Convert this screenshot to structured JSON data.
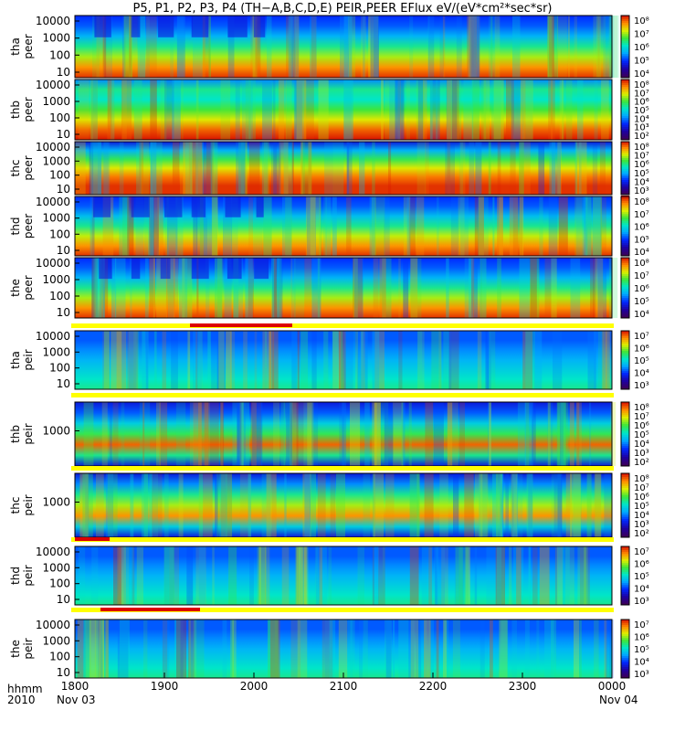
{
  "page": {
    "title": "P5, P1, P2, P3, P4 (TH−A,B,C,D,E) PEIR,PEER EFlux eV/(eV*cm²*sec*sr)",
    "hhmm_label": "hhmm",
    "year_label": "2010",
    "start_date": "Nov 03",
    "end_date": "Nov 04"
  },
  "chart_data": {
    "type": "heatmap",
    "x_ticks": [
      "1800",
      "1900",
      "2000",
      "2100",
      "2200",
      "2300",
      "0000"
    ],
    "panels": [
      {
        "name": "tha-peer",
        "probe": "tha",
        "species": "peer",
        "y_ticks": [
          "10",
          "100",
          "1000",
          "10000"
        ],
        "cbar": [
          "10⁴",
          "10⁵",
          "10⁶",
          "10⁷",
          "10⁸"
        ],
        "cbar_range": [
          3.3,
          8
        ]
      },
      {
        "name": "thb-peer",
        "probe": "thb",
        "species": "peer",
        "y_ticks": [
          "10",
          "100",
          "1000",
          "10000"
        ],
        "cbar": [
          "10²",
          "10³",
          "10⁴",
          "10⁵",
          "10⁶",
          "10⁷",
          "10⁸"
        ],
        "cbar_range": [
          1.8,
          8
        ]
      },
      {
        "name": "thc-peer",
        "probe": "thc",
        "species": "peer",
        "y_ticks": [
          "10",
          "100",
          "1000",
          "10000"
        ],
        "cbar": [
          "10³",
          "10⁴",
          "10⁵",
          "10⁶",
          "10⁷",
          "10⁸"
        ],
        "cbar_range": [
          2.7,
          8
        ]
      },
      {
        "name": "thd-peer",
        "probe": "thd",
        "species": "peer",
        "y_ticks": [
          "10",
          "100",
          "1000",
          "10000"
        ],
        "cbar": [
          "10⁴",
          "10⁵",
          "10⁶",
          "10⁷",
          "10⁸"
        ],
        "cbar_range": [
          3.5,
          8
        ]
      },
      {
        "name": "the-peer",
        "probe": "the",
        "species": "peer",
        "y_ticks": [
          "10",
          "100",
          "1000",
          "10000"
        ],
        "cbar": [
          "10⁴",
          "10⁵",
          "10⁶",
          "10⁷",
          "10⁸"
        ],
        "cbar_range": [
          3.6,
          8
        ]
      },
      {
        "name": "tha-peir",
        "probe": "tha",
        "species": "peir",
        "y_ticks": [
          "10",
          "100",
          "1000",
          "10000"
        ],
        "cbar": [
          "10³",
          "10⁴",
          "10⁵",
          "10⁶",
          "10⁷"
        ],
        "cbar_range": [
          2.7,
          7.3
        ]
      },
      {
        "name": "thb-peir",
        "probe": "thb",
        "species": "peir",
        "y_ticks": [
          "1000"
        ],
        "cbar": [
          "10²",
          "10³",
          "10⁴",
          "10⁵",
          "10⁶",
          "10⁷",
          "10⁸"
        ],
        "cbar_range": [
          1.8,
          8
        ]
      },
      {
        "name": "thc-peir",
        "probe": "thc",
        "species": "peir",
        "y_ticks": [
          "1000"
        ],
        "cbar": [
          "10²",
          "10³",
          "10⁴",
          "10⁵",
          "10⁶",
          "10⁷",
          "10⁸"
        ],
        "cbar_range": [
          1.8,
          8
        ]
      },
      {
        "name": "thd-peir",
        "probe": "thd",
        "species": "peir",
        "y_ticks": [
          "10",
          "100",
          "1000",
          "10000"
        ],
        "cbar": [
          "10³",
          "10⁴",
          "10⁵",
          "10⁶",
          "10⁷"
        ],
        "cbar_range": [
          2.7,
          7.3
        ]
      },
      {
        "name": "the-peir",
        "probe": "the",
        "species": "peir",
        "y_ticks": [
          "10",
          "100",
          "1000",
          "10000"
        ],
        "cbar": [
          "10³",
          "10⁴",
          "10⁵",
          "10⁶",
          "10⁷"
        ],
        "cbar_range": [
          2.7,
          7.3
        ]
      }
    ]
  }
}
